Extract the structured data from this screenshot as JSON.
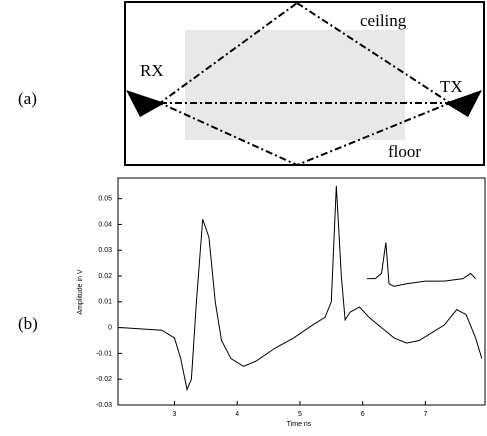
{
  "panel_a": {
    "label": "(a)",
    "rx": "RX",
    "tx": "TX",
    "ceiling": "ceiling",
    "floor": "floor"
  },
  "panel_b": {
    "label": "(b)"
  },
  "chart_data": {
    "type": "line",
    "xlabel": "Time ns",
    "ylabel": "Amplitude in V",
    "xlim": [
      2.1,
      7.95
    ],
    "ylim": [
      -0.03,
      0.058
    ],
    "xticks": [
      3,
      4,
      5,
      6,
      7
    ],
    "yticks": [
      -0.03,
      -0.02,
      -0.01,
      0,
      0.01,
      0.02,
      0.03,
      0.04,
      0.05
    ],
    "series": [
      {
        "color": "#000000",
        "x": [
          2.15,
          2.8,
          3.0,
          3.1,
          3.2,
          3.27,
          3.35,
          3.45,
          3.55,
          3.65,
          3.75,
          3.9,
          4.1,
          4.3,
          4.6,
          4.9,
          5.2,
          5.4,
          5.5,
          5.58,
          5.66,
          5.72,
          5.8,
          5.95,
          6.1,
          6.3,
          6.5,
          6.7,
          6.9,
          7.1,
          7.3,
          7.5,
          7.65,
          7.8,
          7.9
        ],
        "values": [
          0.0,
          -0.001,
          -0.004,
          -0.012,
          -0.024,
          -0.02,
          0.01,
          0.042,
          0.035,
          0.01,
          -0.005,
          -0.012,
          -0.015,
          -0.013,
          -0.008,
          -0.004,
          0.001,
          0.004,
          0.01,
          0.055,
          0.02,
          0.003,
          0.006,
          0.008,
          0.004,
          0.0,
          -0.004,
          -0.006,
          -0.005,
          -0.002,
          0.001,
          0.007,
          0.005,
          -0.004,
          -0.012
        ]
      },
      {
        "color": "#000000",
        "x": [
          6.07,
          6.2,
          6.3,
          6.37,
          6.42,
          6.5,
          6.7,
          7.0,
          7.3,
          7.6,
          7.72,
          7.8
        ],
        "values": [
          0.019,
          0.019,
          0.021,
          0.033,
          0.017,
          0.016,
          0.017,
          0.018,
          0.018,
          0.019,
          0.021,
          0.019
        ]
      }
    ]
  }
}
